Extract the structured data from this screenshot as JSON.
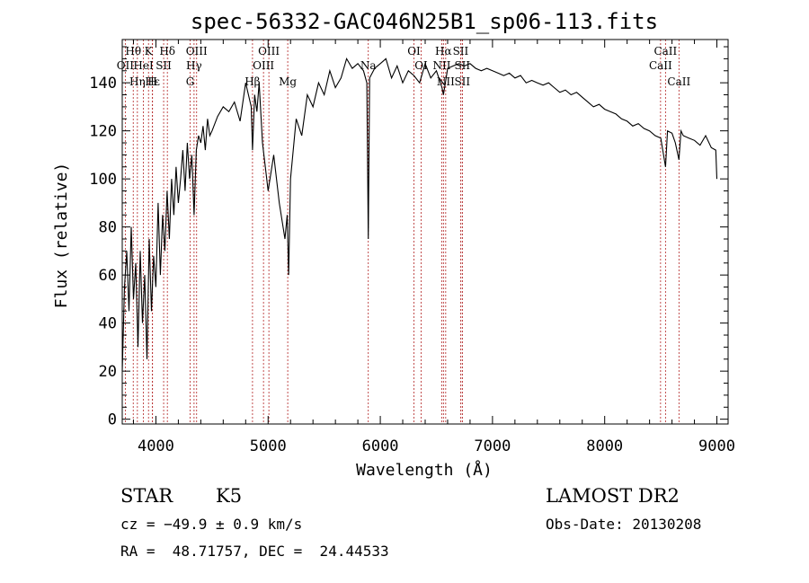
{
  "chart_data": {
    "type": "line",
    "title": "spec-56332-GAC046N25B1_sp06-113.fits",
    "xlabel": "Wavelength (Å)",
    "ylabel": "Flux (relative)",
    "xlim": [
      3700,
      9100
    ],
    "ylim": [
      -2,
      158
    ],
    "x_ticks": [
      4000,
      5000,
      6000,
      7000,
      8000,
      9000
    ],
    "y_ticks": [
      0,
      20,
      40,
      60,
      80,
      100,
      120,
      140
    ],
    "grid": false,
    "series": [
      {
        "x": [
          3700,
          3720,
          3740,
          3760,
          3780,
          3800,
          3820,
          3840,
          3860,
          3880,
          3900,
          3920,
          3940,
          3960,
          3980,
          4000,
          4020,
          4040,
          4060,
          4080,
          4100,
          4120,
          4140,
          4160,
          4180,
          4200,
          4220,
          4240,
          4260,
          4280,
          4300,
          4320,
          4340,
          4360,
          4380,
          4400,
          4420,
          4440,
          4460,
          4480,
          4500,
          4550,
          4600,
          4650,
          4700,
          4750,
          4800,
          4850,
          4861,
          4880,
          4900,
          4920,
          4950,
          5000,
          5050,
          5100,
          5150,
          5170,
          5183,
          5200,
          5250,
          5300,
          5350,
          5400,
          5450,
          5500,
          5550,
          5600,
          5650,
          5700,
          5750,
          5800,
          5850,
          5880,
          5893,
          5905,
          5950,
          6000,
          6050,
          6100,
          6150,
          6200,
          6250,
          6300,
          6350,
          6400,
          6450,
          6500,
          6550,
          6563,
          6580,
          6600,
          6650,
          6700,
          6750,
          6800,
          6850,
          6900,
          6950,
          7000,
          7050,
          7100,
          7150,
          7200,
          7250,
          7300,
          7350,
          7400,
          7450,
          7500,
          7550,
          7600,
          7650,
          7700,
          7750,
          7800,
          7850,
          7900,
          7950,
          8000,
          8050,
          8100,
          8150,
          8200,
          8250,
          8300,
          8350,
          8400,
          8450,
          8500,
          8542,
          8560,
          8600,
          8630,
          8662,
          8680,
          8700,
          8750,
          8800,
          8850,
          8900,
          8950,
          8990,
          9000
        ],
        "y": [
          20,
          55,
          70,
          45,
          80,
          50,
          65,
          30,
          70,
          40,
          60,
          25,
          75,
          45,
          68,
          55,
          90,
          60,
          85,
          70,
          95,
          75,
          100,
          85,
          105,
          90,
          100,
          112,
          95,
          115,
          100,
          110,
          85,
          112,
          118,
          115,
          122,
          112,
          125,
          118,
          120,
          126,
          130,
          128,
          132,
          124,
          140,
          130,
          112,
          135,
          128,
          140,
          115,
          95,
          110,
          90,
          75,
          85,
          60,
          100,
          125,
          118,
          135,
          130,
          140,
          135,
          145,
          138,
          142,
          150,
          146,
          148,
          145,
          140,
          75,
          142,
          146,
          148,
          150,
          142,
          147,
          140,
          145,
          143,
          140,
          148,
          142,
          145,
          138,
          135,
          140,
          146,
          147,
          148,
          147,
          148,
          146,
          145,
          146,
          145,
          144,
          143,
          144,
          142,
          143,
          140,
          141,
          140,
          139,
          140,
          138,
          136,
          137,
          135,
          136,
          134,
          132,
          130,
          131,
          129,
          128,
          127,
          125,
          124,
          122,
          123,
          121,
          120,
          118,
          117,
          105,
          120,
          119,
          115,
          108,
          120,
          118,
          117,
          116,
          114,
          118,
          113,
          112,
          100
        ]
      }
    ],
    "spectral_lines": [
      {
        "label": "Hθ",
        "x": 3798,
        "row": 1
      },
      {
        "label": "OII",
        "x": 3727,
        "row": 2
      },
      {
        "label": "Hε",
        "x": 3970,
        "row": 3
      },
      {
        "label": "K",
        "x": 3934,
        "row": 1
      },
      {
        "label": "HeI",
        "x": 3889,
        "row": 2
      },
      {
        "label": "Hη",
        "x": 3835,
        "row": 3
      },
      {
        "label": "Hδ",
        "x": 4102,
        "row": 1
      },
      {
        "label": "SII",
        "x": 4069,
        "row": 2
      },
      {
        "label": "H",
        "x": 3969,
        "row": 3
      },
      {
        "label": "OIII",
        "x": 4363,
        "row": 1
      },
      {
        "label": "Hγ",
        "x": 4340,
        "row": 2
      },
      {
        "label": "G",
        "x": 4305,
        "row": 3
      },
      {
        "label": "Hβ",
        "x": 4861,
        "row": 3
      },
      {
        "label": "OIII",
        "x": 5007,
        "row": 1
      },
      {
        "label": "OIII",
        "x": 4959,
        "row": 2
      },
      {
        "label": "Mg",
        "x": 5175,
        "row": 3
      },
      {
        "label": "Na",
        "x": 5893,
        "row": 2
      },
      {
        "label": "OI",
        "x": 6300,
        "row": 1
      },
      {
        "label": "OI",
        "x": 6364,
        "row": 2
      },
      {
        "label": "Hα",
        "x": 6563,
        "row": 1
      },
      {
        "label": "NII",
        "x": 6548,
        "row": 2
      },
      {
        "label": "NII",
        "x": 6583,
        "row": 3
      },
      {
        "label": "SII",
        "x": 6716,
        "row": 1
      },
      {
        "label": "SII",
        "x": 6731,
        "row": 2
      },
      {
        "label": "SII",
        "x": 6731,
        "row": 3
      },
      {
        "label": "CaII",
        "x": 8542,
        "row": 1
      },
      {
        "label": "CaII",
        "x": 8498,
        "row": 2
      },
      {
        "label": "CaII",
        "x": 8662,
        "row": 3
      }
    ],
    "colors": {
      "spectrum": "#000000",
      "line_markers": "#b22222",
      "background": "#ffffff"
    }
  },
  "info": {
    "object_type": "STAR",
    "subclass": "K5",
    "survey": "LAMOST DR2",
    "redshift": "cz = −49.9 ± 0.9 km/s",
    "obs_date": "Obs-Date: 20130208",
    "coords": "RA =  48.71757, DEC =  24.44533"
  }
}
